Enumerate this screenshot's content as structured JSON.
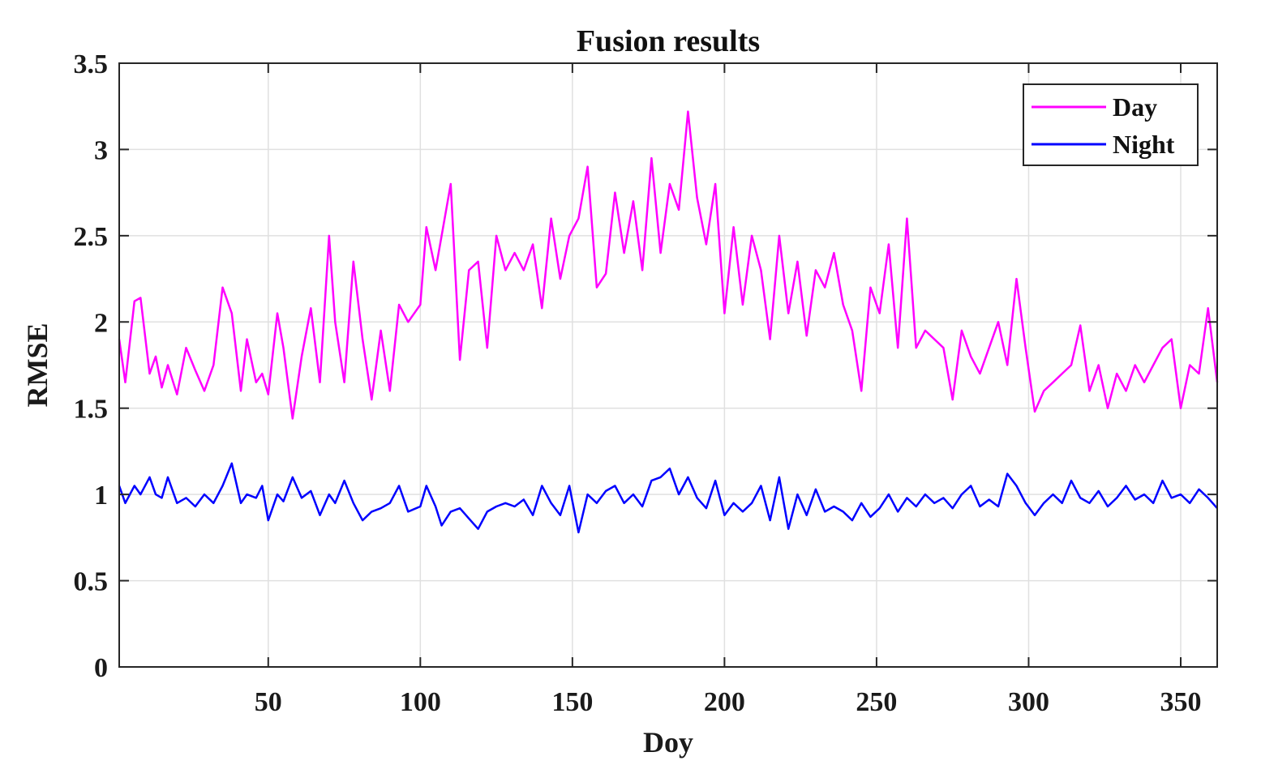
{
  "chart_data": {
    "type": "line",
    "title": "Fusion results",
    "xlabel": "Doy",
    "ylabel": "RMSE",
    "xlim": [
      1,
      362
    ],
    "ylim": [
      0,
      3.5
    ],
    "xticks": [
      50,
      100,
      150,
      200,
      250,
      300,
      350
    ],
    "xtick_labels": [
      "50",
      "100",
      "150",
      "200",
      "250",
      "300",
      "350"
    ],
    "yticks": [
      0,
      0.5,
      1,
      1.5,
      2,
      2.5,
      3,
      3.5
    ],
    "ytick_labels": [
      "0",
      "0.5",
      "1",
      "1.5",
      "2",
      "2.5",
      "3",
      "3.5"
    ],
    "grid": true,
    "legend_position": "top-right",
    "series": [
      {
        "name": "Day",
        "color": "#ff00ff",
        "x": [
          1,
          3,
          6,
          8,
          11,
          13,
          15,
          17,
          20,
          23,
          26,
          29,
          32,
          35,
          38,
          41,
          43,
          46,
          48,
          50,
          53,
          55,
          58,
          61,
          64,
          67,
          70,
          72,
          75,
          78,
          81,
          84,
          87,
          90,
          93,
          96,
          100,
          102,
          105,
          107,
          110,
          113,
          116,
          119,
          122,
          125,
          128,
          131,
          134,
          137,
          140,
          143,
          146,
          149,
          152,
          155,
          158,
          161,
          164,
          167,
          170,
          173,
          176,
          179,
          182,
          185,
          188,
          191,
          194,
          197,
          200,
          203,
          206,
          209,
          212,
          215,
          218,
          221,
          224,
          227,
          230,
          233,
          236,
          239,
          242,
          245,
          248,
          251,
          254,
          257,
          260,
          263,
          266,
          269,
          272,
          275,
          278,
          281,
          284,
          287,
          290,
          293,
          296,
          299,
          302,
          305,
          308,
          311,
          314,
          317,
          320,
          323,
          326,
          329,
          332,
          335,
          338,
          341,
          344,
          347,
          350,
          353,
          356,
          359,
          362
        ],
        "values": [
          1.9,
          1.65,
          2.12,
          2.14,
          1.7,
          1.8,
          1.62,
          1.75,
          1.58,
          1.85,
          1.72,
          1.6,
          1.75,
          2.2,
          2.05,
          1.6,
          1.9,
          1.65,
          1.7,
          1.58,
          2.05,
          1.85,
          1.44,
          1.8,
          2.08,
          1.65,
          2.5,
          2.0,
          1.65,
          2.35,
          1.9,
          1.55,
          1.95,
          1.6,
          2.1,
          2.0,
          2.1,
          2.55,
          2.3,
          2.5,
          2.8,
          1.78,
          2.3,
          2.35,
          1.85,
          2.5,
          2.3,
          2.4,
          2.3,
          2.45,
          2.08,
          2.6,
          2.25,
          2.5,
          2.6,
          2.9,
          2.2,
          2.28,
          2.75,
          2.4,
          2.7,
          2.3,
          2.95,
          2.4,
          2.8,
          2.65,
          3.22,
          2.72,
          2.45,
          2.8,
          2.05,
          2.55,
          2.1,
          2.5,
          2.3,
          1.9,
          2.5,
          2.05,
          2.35,
          1.92,
          2.3,
          2.2,
          2.4,
          2.1,
          1.95,
          1.6,
          2.2,
          2.05,
          2.45,
          1.85,
          2.6,
          1.85,
          1.95,
          1.9,
          1.85,
          1.55,
          1.95,
          1.8,
          1.7,
          1.85,
          2.0,
          1.75,
          2.25,
          1.85,
          1.48,
          1.6,
          1.65,
          1.7,
          1.75,
          1.98,
          1.6,
          1.75,
          1.5,
          1.7,
          1.6,
          1.75,
          1.65,
          1.75,
          1.85,
          1.9,
          1.5,
          1.75,
          1.7,
          2.08,
          1.65
        ]
      },
      {
        "name": "Night",
        "color": "#0000ff",
        "x": [
          1,
          3,
          6,
          8,
          11,
          13,
          15,
          17,
          20,
          23,
          26,
          29,
          32,
          35,
          38,
          41,
          43,
          46,
          48,
          50,
          53,
          55,
          58,
          61,
          64,
          67,
          70,
          72,
          75,
          78,
          81,
          84,
          87,
          90,
          93,
          96,
          100,
          102,
          105,
          107,
          110,
          113,
          116,
          119,
          122,
          125,
          128,
          131,
          134,
          137,
          140,
          143,
          146,
          149,
          152,
          155,
          158,
          161,
          164,
          167,
          170,
          173,
          176,
          179,
          182,
          185,
          188,
          191,
          194,
          197,
          200,
          203,
          206,
          209,
          212,
          215,
          218,
          221,
          224,
          227,
          230,
          233,
          236,
          239,
          242,
          245,
          248,
          251,
          254,
          257,
          260,
          263,
          266,
          269,
          272,
          275,
          278,
          281,
          284,
          287,
          290,
          293,
          296,
          299,
          302,
          305,
          308,
          311,
          314,
          317,
          320,
          323,
          326,
          329,
          332,
          335,
          338,
          341,
          344,
          347,
          350,
          353,
          356,
          359,
          362
        ],
        "values": [
          1.05,
          0.95,
          1.05,
          1.0,
          1.1,
          1.0,
          0.98,
          1.1,
          0.95,
          0.98,
          0.93,
          1.0,
          0.95,
          1.05,
          1.18,
          0.95,
          1.0,
          0.98,
          1.05,
          0.85,
          1.0,
          0.96,
          1.1,
          0.98,
          1.02,
          0.88,
          1.0,
          0.95,
          1.08,
          0.95,
          0.85,
          0.9,
          0.92,
          0.95,
          1.05,
          0.9,
          0.93,
          1.05,
          0.93,
          0.82,
          0.9,
          0.92,
          0.86,
          0.8,
          0.9,
          0.93,
          0.95,
          0.93,
          0.97,
          0.88,
          1.05,
          0.95,
          0.88,
          1.05,
          0.78,
          1.0,
          0.95,
          1.02,
          1.05,
          0.95,
          1.0,
          0.93,
          1.08,
          1.1,
          1.15,
          1.0,
          1.1,
          0.98,
          0.92,
          1.08,
          0.88,
          0.95,
          0.9,
          0.95,
          1.05,
          0.85,
          1.1,
          0.8,
          1.0,
          0.88,
          1.03,
          0.9,
          0.93,
          0.9,
          0.85,
          0.95,
          0.87,
          0.92,
          1.0,
          0.9,
          0.98,
          0.93,
          1.0,
          0.95,
          0.98,
          0.92,
          1.0,
          1.05,
          0.93,
          0.97,
          0.93,
          1.12,
          1.05,
          0.95,
          0.88,
          0.95,
          1.0,
          0.95,
          1.08,
          0.98,
          0.95,
          1.02,
          0.93,
          0.98,
          1.05,
          0.97,
          1.0,
          0.95,
          1.08,
          0.98,
          1.0,
          0.95,
          1.03,
          0.98,
          0.92
        ]
      }
    ]
  }
}
